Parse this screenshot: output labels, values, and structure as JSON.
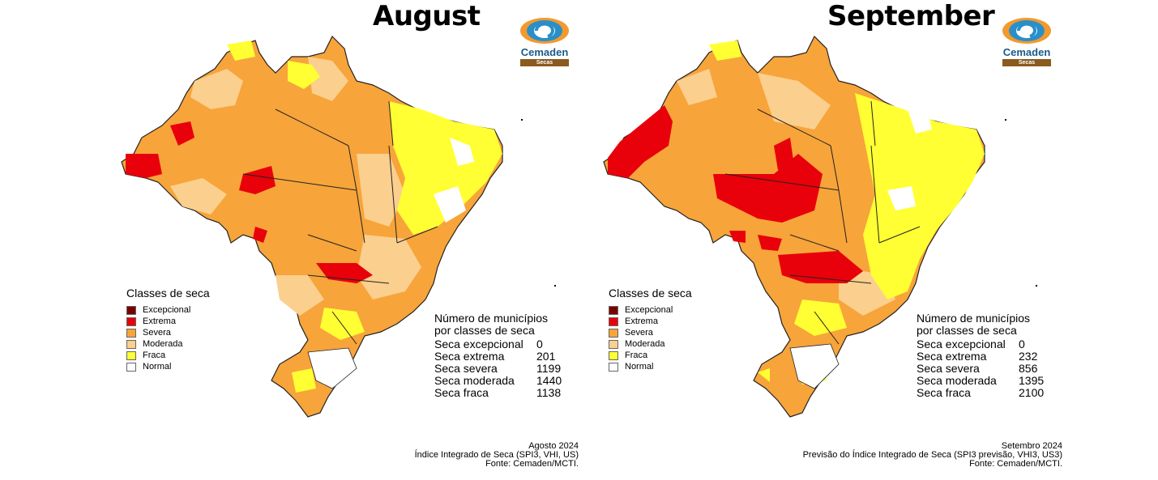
{
  "colors": {
    "excepcional": "#7a0000",
    "extrema": "#e8000b",
    "severa": "#f7a43a",
    "moderada": "#fbcf8e",
    "fraca": "#ffff33",
    "normal": "#ffffff"
  },
  "logo": {
    "name": "Cemaden",
    "sub": "Secas"
  },
  "legend": {
    "title": "Classes de seca",
    "items": [
      "Excepcional",
      "Extrema",
      "Severa",
      "Moderada",
      "Fraca",
      "Normal"
    ]
  },
  "panels": [
    {
      "title": "August",
      "counts_title_1": "Número de municípios",
      "counts_title_2": "por classes de seca",
      "counts": [
        {
          "label": "Seca excepcional",
          "value": "0"
        },
        {
          "label": "Seca extrema",
          "value": "201"
        },
        {
          "label": "Seca severa",
          "value": "1199"
        },
        {
          "label": "Seca moderada",
          "value": "1440"
        },
        {
          "label": "Seca fraca",
          "value": "1138"
        }
      ],
      "footer": [
        "Agosto 2024",
        "Índice Integrado de Seca (SPI3, VHI, US)",
        "Fonte: Cemaden/MCTI."
      ]
    },
    {
      "title": "September",
      "counts_title_1": "Número de municípios",
      "counts_title_2": "por classes de seca",
      "counts": [
        {
          "label": "Seca excepcional",
          "value": "0"
        },
        {
          "label": "Seca extrema",
          "value": "232"
        },
        {
          "label": "Seca severa",
          "value": "856"
        },
        {
          "label": "Seca moderada",
          "value": "1395"
        },
        {
          "label": "Seca fraca",
          "value": "2100"
        }
      ],
      "footer": [
        "Setembro 2024",
        "Previsão do Índice Integrado de Seca (SPI3 previsão, VHI3, US3)",
        "Fonte: Cemaden/MCTI."
      ]
    }
  ]
}
